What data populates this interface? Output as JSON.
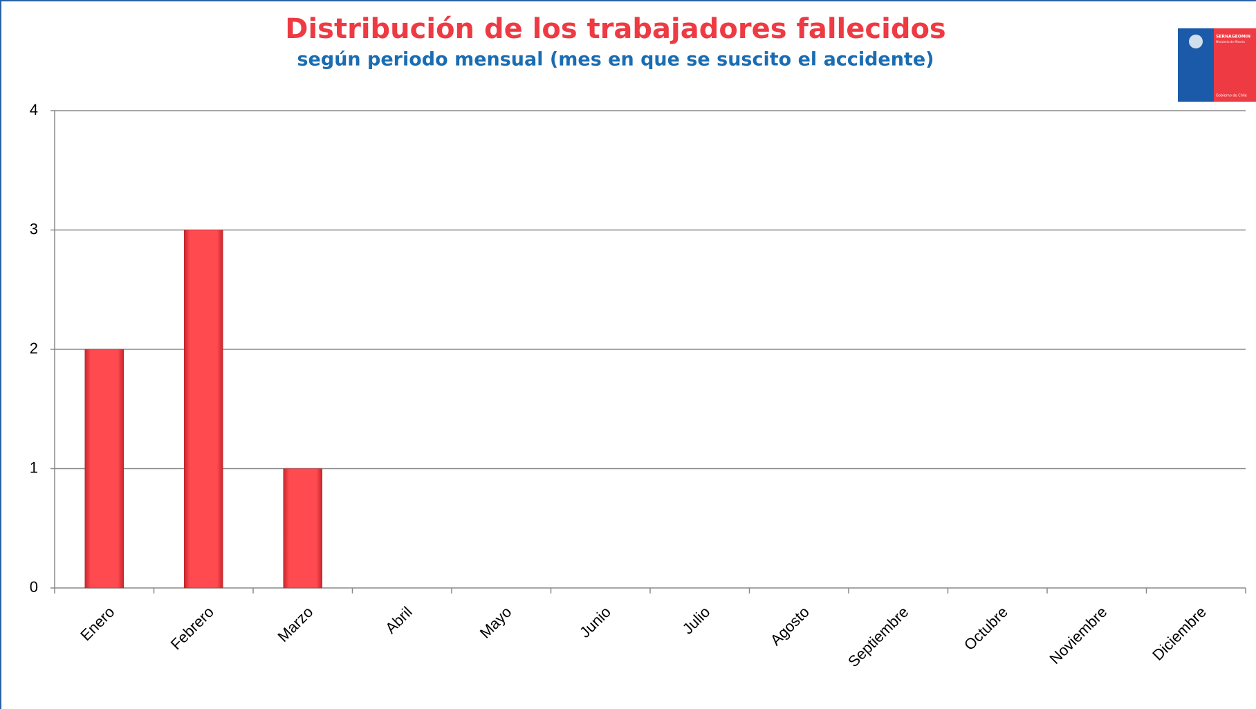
{
  "chart_data": {
    "type": "bar",
    "title": "Distribución de los trabajadores fallecidos",
    "subtitle": "según periodo mensual (mes en que se suscito el accidente)",
    "logo": {
      "name": "SERNAGEOMIN",
      "ministry": "Ministerio de Minería",
      "government": "Gobierno de Chile"
    },
    "categories": [
      "Enero",
      "Febrero",
      "Marzo",
      "Abril",
      "Mayo",
      "Junio",
      "Julio",
      "Agosto",
      "Septiembre",
      "Octubre",
      "Noviembre",
      "Diciembre"
    ],
    "values": [
      2,
      3,
      1,
      0,
      0,
      0,
      0,
      0,
      0,
      0,
      0,
      0
    ],
    "color": "#ff4a50",
    "ylim": [
      0,
      4
    ],
    "yticks": [
      0,
      1,
      2,
      3,
      4
    ],
    "grid": true
  }
}
